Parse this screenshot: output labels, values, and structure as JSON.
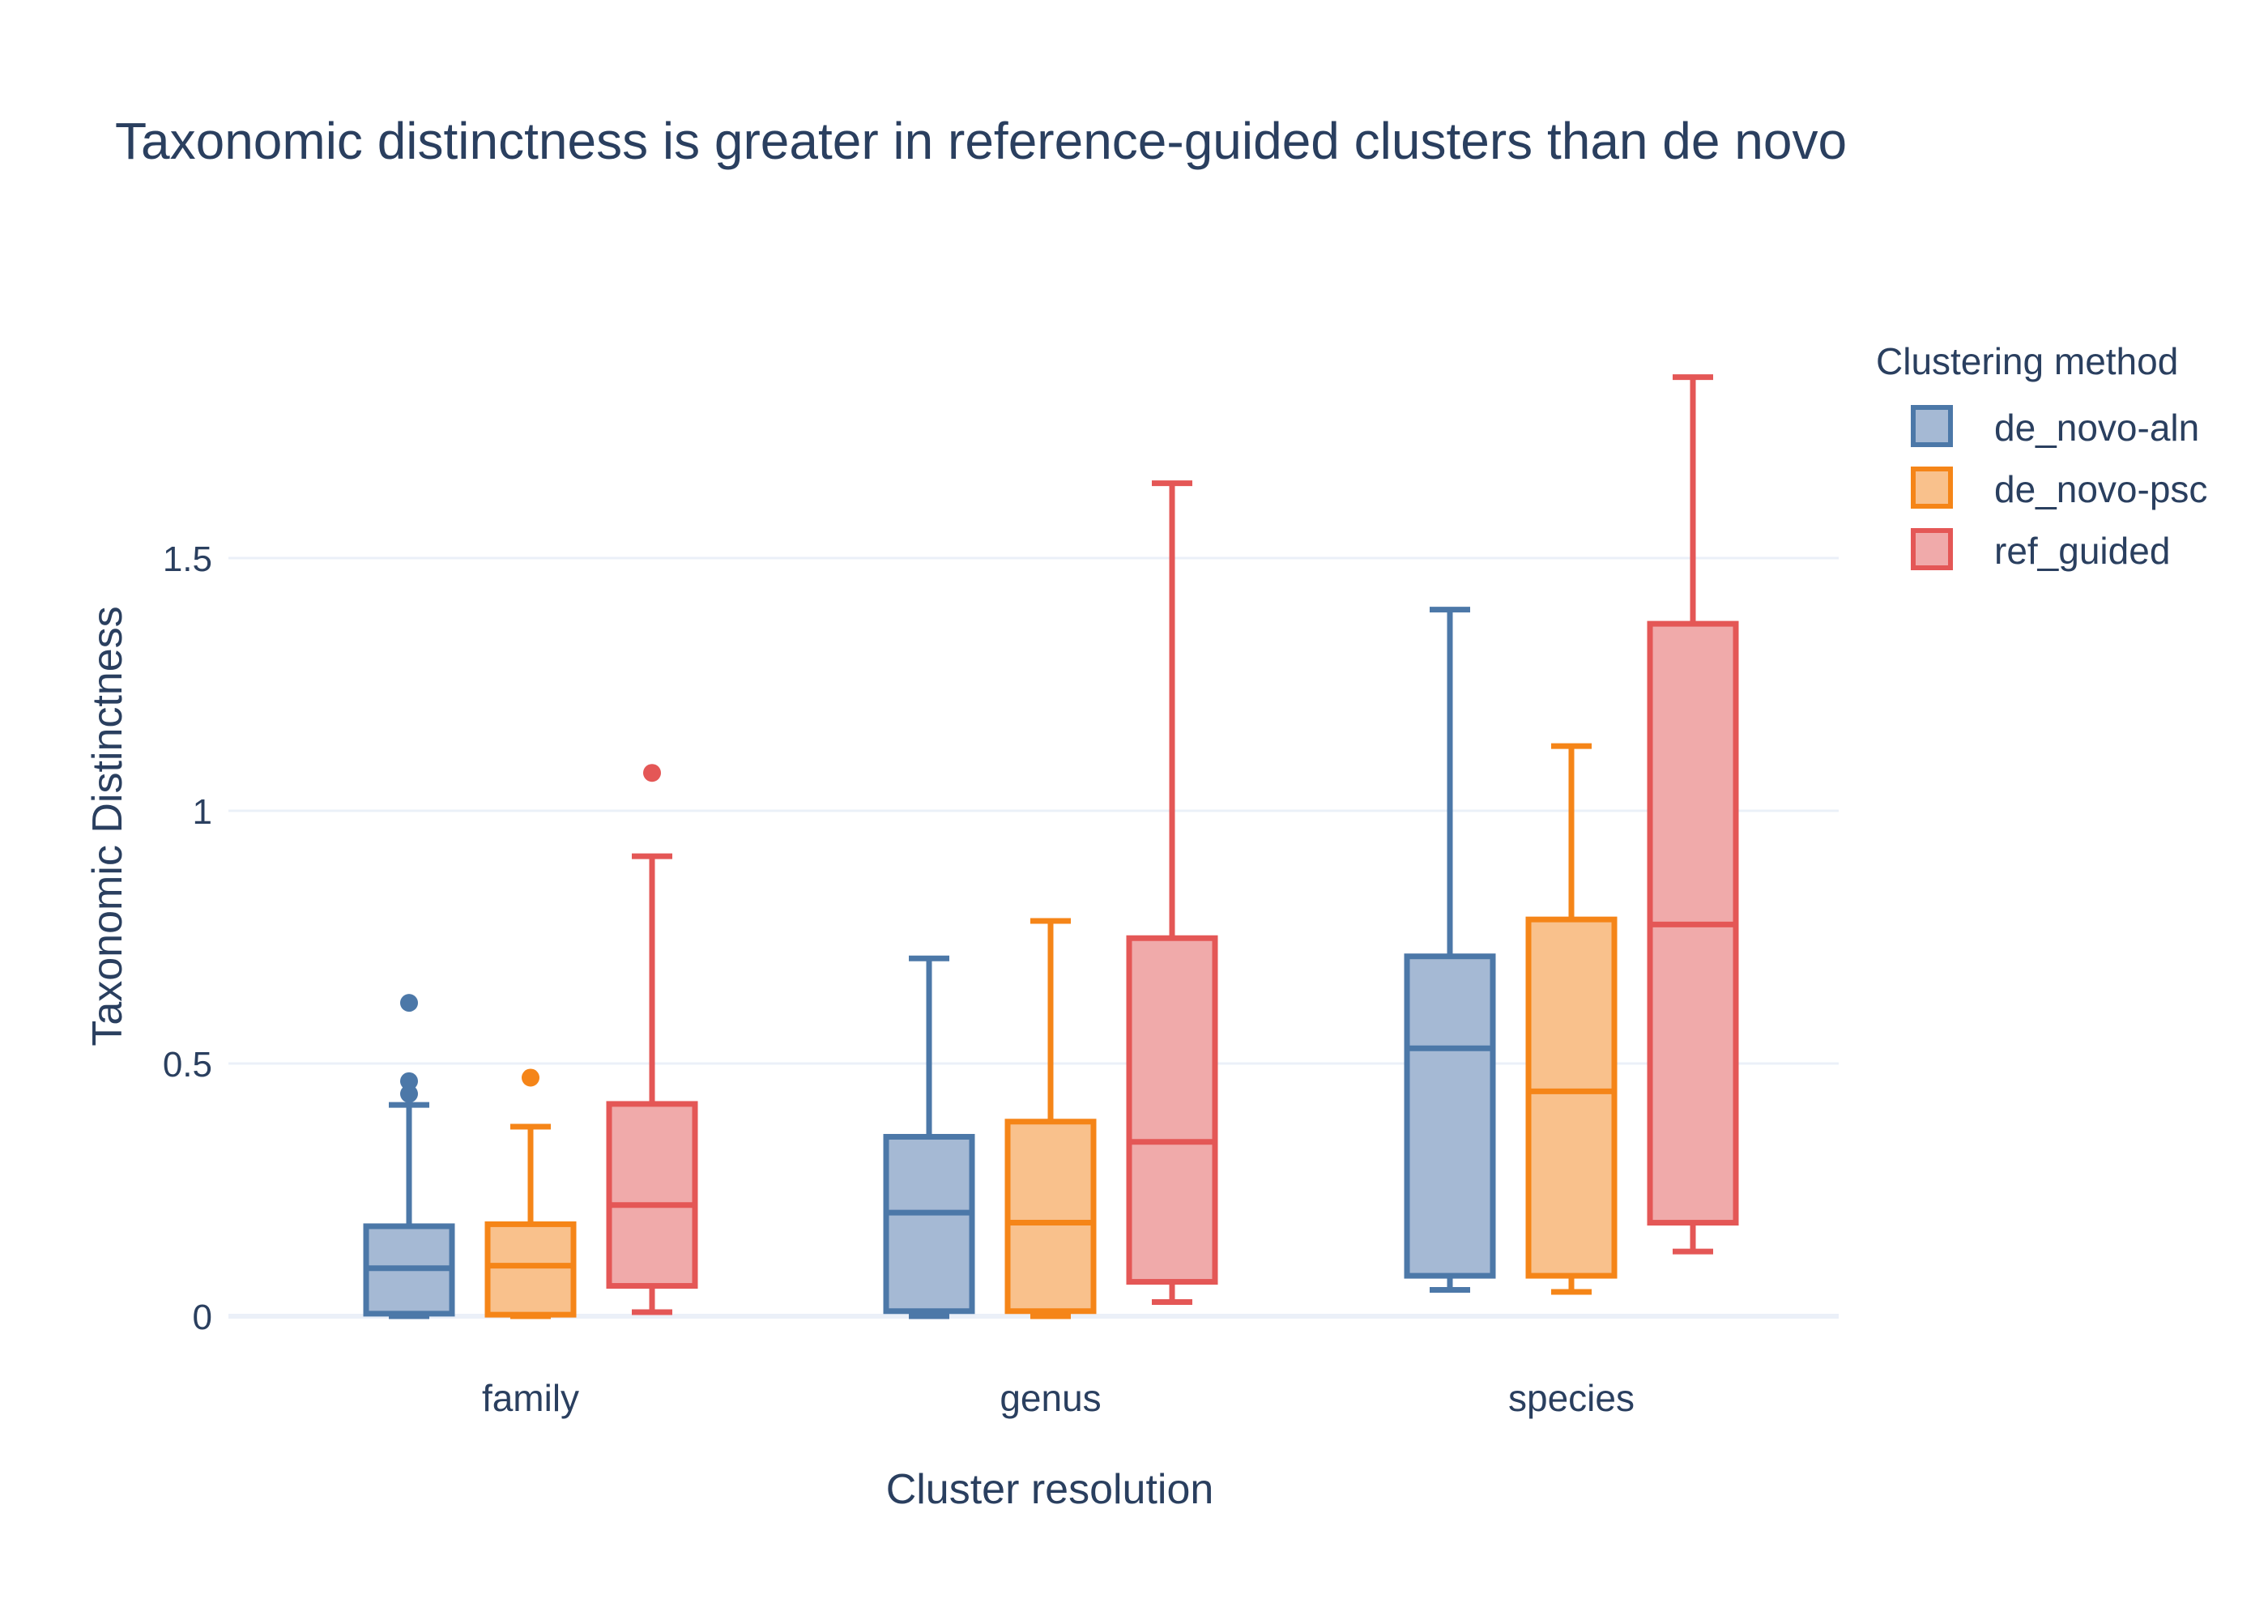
{
  "chart_data": {
    "type": "box",
    "title": "Taxonomic distinctness is greater in reference-guided clusters than de novo",
    "xlabel": "Cluster resolution",
    "ylabel": "Taxonomic Distinctness",
    "categories": [
      "family",
      "genus",
      "species"
    ],
    "y_ticks": [
      {
        "value": 0,
        "label": "0"
      },
      {
        "value": 0.5,
        "label": "0.5"
      },
      {
        "value": 1,
        "label": "1"
      },
      {
        "value": 1.5,
        "label": "1.5"
      }
    ],
    "ylim": [
      -0.06,
      1.9
    ],
    "grid": true,
    "legend": {
      "title": "Clustering method",
      "placement": "right"
    },
    "series": [
      {
        "name": "de_novo-aln",
        "color": "#4c78a8",
        "fill": "#a5b9d4",
        "boxes": [
          {
            "category": "family",
            "min": 0.0,
            "q1": 0.005,
            "median": 0.095,
            "q3": 0.178,
            "max": 0.418,
            "outliers": [
              0.44,
              0.465,
              0.62
            ]
          },
          {
            "category": "genus",
            "min": 0.0,
            "q1": 0.01,
            "median": 0.205,
            "q3": 0.355,
            "max": 0.708,
            "outliers": []
          },
          {
            "category": "species",
            "min": 0.052,
            "q1": 0.08,
            "median": 0.53,
            "q3": 0.712,
            "max": 1.398,
            "outliers": []
          }
        ]
      },
      {
        "name": "de_novo-psc",
        "color": "#f58518",
        "fill": "#f9c18c",
        "boxes": [
          {
            "category": "family",
            "min": 0.0,
            "q1": 0.003,
            "median": 0.1,
            "q3": 0.182,
            "max": 0.375,
            "outliers": [
              0.472
            ]
          },
          {
            "category": "genus",
            "min": 0.0,
            "q1": 0.01,
            "median": 0.185,
            "q3": 0.385,
            "max": 0.782,
            "outliers": []
          },
          {
            "category": "species",
            "min": 0.048,
            "q1": 0.08,
            "median": 0.445,
            "q3": 0.785,
            "max": 1.128,
            "outliers": []
          }
        ]
      },
      {
        "name": "ref_guided",
        "color": "#e45756",
        "fill": "#f0aaaa",
        "boxes": [
          {
            "category": "family",
            "min": 0.008,
            "q1": 0.06,
            "median": 0.22,
            "q3": 0.42,
            "max": 0.91,
            "outliers": [
              1.075
            ]
          },
          {
            "category": "genus",
            "min": 0.028,
            "q1": 0.068,
            "median": 0.345,
            "q3": 0.748,
            "max": 1.648,
            "outliers": []
          },
          {
            "category": "species",
            "min": 0.128,
            "q1": 0.185,
            "median": 0.775,
            "q3": 1.37,
            "max": 1.858,
            "outliers": []
          }
        ]
      }
    ]
  }
}
